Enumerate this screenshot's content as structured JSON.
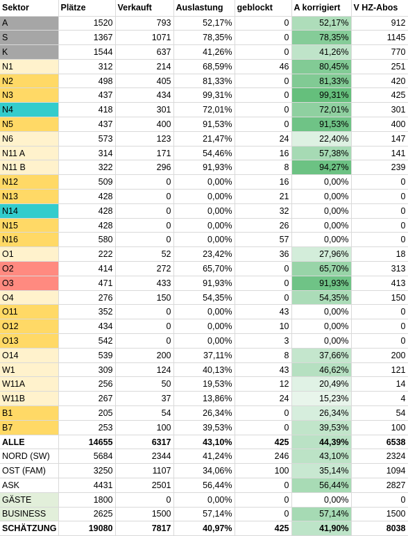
{
  "colors": {
    "gray": "#a6a6a6",
    "light_yellow": "#fff2cc",
    "yellow": "#ffd966",
    "teal": "#33cccc",
    "salmon": "#ff8a80",
    "light_green": "#e2efda"
  },
  "headers": [
    "Sektor",
    "Plätze",
    "Verkauft",
    "Auslastung",
    "geblockt",
    "A korrigiert",
    "V HZ-Abos"
  ],
  "rows": [
    {
      "cells": [
        "A",
        "1520",
        "793",
        "52,17%",
        "0",
        "52,17%",
        "912"
      ],
      "bg": "gray",
      "heat": 0.52,
      "bold": false
    },
    {
      "cells": [
        "S",
        "1367",
        "1071",
        "78,35%",
        "0",
        "78,35%",
        "1145"
      ],
      "bg": "gray",
      "heat": 0.78,
      "bold": false
    },
    {
      "cells": [
        "K",
        "1544",
        "637",
        "41,26%",
        "0",
        "41,26%",
        "770"
      ],
      "bg": "gray",
      "heat": 0.41,
      "bold": false
    },
    {
      "cells": [
        "N1",
        "312",
        "214",
        "68,59%",
        "46",
        "80,45%",
        "251"
      ],
      "bg": "light_yellow",
      "heat": 0.8,
      "bold": false
    },
    {
      "cells": [
        "N2",
        "498",
        "405",
        "81,33%",
        "0",
        "81,33%",
        "420"
      ],
      "bg": "yellow",
      "heat": 0.81,
      "bold": false
    },
    {
      "cells": [
        "N3",
        "437",
        "434",
        "99,31%",
        "0",
        "99,31%",
        "425"
      ],
      "bg": "yellow",
      "heat": 0.99,
      "bold": false
    },
    {
      "cells": [
        "N4",
        "418",
        "301",
        "72,01%",
        "0",
        "72,01%",
        "301"
      ],
      "bg": "teal",
      "heat": 0.72,
      "bold": false
    },
    {
      "cells": [
        "N5",
        "437",
        "400",
        "91,53%",
        "0",
        "91,53%",
        "400"
      ],
      "bg": "yellow",
      "heat": 0.92,
      "bold": false
    },
    {
      "cells": [
        "N6",
        "573",
        "123",
        "21,47%",
        "24",
        "22,40%",
        "147"
      ],
      "bg": "light_yellow",
      "heat": 0.22,
      "bold": false
    },
    {
      "cells": [
        "N11 A",
        "314",
        "171",
        "54,46%",
        "16",
        "57,38%",
        "141"
      ],
      "bg": "light_yellow",
      "heat": 0.57,
      "bold": false
    },
    {
      "cells": [
        "N11 B",
        "322",
        "296",
        "91,93%",
        "8",
        "94,27%",
        "239"
      ],
      "bg": "light_yellow",
      "heat": 0.94,
      "bold": false
    },
    {
      "cells": [
        "N12",
        "509",
        "0",
        "0,00%",
        "16",
        "0,00%",
        "0"
      ],
      "bg": "yellow",
      "heat": 0,
      "bold": false
    },
    {
      "cells": [
        "N13",
        "428",
        "0",
        "0,00%",
        "21",
        "0,00%",
        "0"
      ],
      "bg": "yellow",
      "heat": 0,
      "bold": false
    },
    {
      "cells": [
        "N14",
        "428",
        "0",
        "0,00%",
        "32",
        "0,00%",
        "0"
      ],
      "bg": "teal",
      "heat": 0,
      "bold": false
    },
    {
      "cells": [
        "N15",
        "428",
        "0",
        "0,00%",
        "26",
        "0,00%",
        "0"
      ],
      "bg": "yellow",
      "heat": 0,
      "bold": false
    },
    {
      "cells": [
        "N16",
        "580",
        "0",
        "0,00%",
        "57",
        "0,00%",
        "0"
      ],
      "bg": "yellow",
      "heat": 0,
      "bold": false
    },
    {
      "cells": [
        "O1",
        "222",
        "52",
        "23,42%",
        "36",
        "27,96%",
        "18"
      ],
      "bg": "light_yellow",
      "heat": 0.28,
      "bold": false
    },
    {
      "cells": [
        "O2",
        "414",
        "272",
        "65,70%",
        "0",
        "65,70%",
        "313"
      ],
      "bg": "salmon",
      "heat": 0.66,
      "bold": false
    },
    {
      "cells": [
        "O3",
        "471",
        "433",
        "91,93%",
        "0",
        "91,93%",
        "413"
      ],
      "bg": "salmon",
      "heat": 0.92,
      "bold": false
    },
    {
      "cells": [
        "O4",
        "276",
        "150",
        "54,35%",
        "0",
        "54,35%",
        "150"
      ],
      "bg": "light_yellow",
      "heat": 0.54,
      "bold": false
    },
    {
      "cells": [
        "O11",
        "352",
        "0",
        "0,00%",
        "43",
        "0,00%",
        "0"
      ],
      "bg": "yellow",
      "heat": 0,
      "bold": false
    },
    {
      "cells": [
        "O12",
        "434",
        "0",
        "0,00%",
        "10",
        "0,00%",
        "0"
      ],
      "bg": "yellow",
      "heat": 0,
      "bold": false
    },
    {
      "cells": [
        "O13",
        "542",
        "0",
        "0,00%",
        "3",
        "0,00%",
        "0"
      ],
      "bg": "yellow",
      "heat": 0,
      "bold": false
    },
    {
      "cells": [
        "O14",
        "539",
        "200",
        "37,11%",
        "8",
        "37,66%",
        "200"
      ],
      "bg": "light_yellow",
      "heat": 0.38,
      "bold": false
    },
    {
      "cells": [
        "W1",
        "309",
        "124",
        "40,13%",
        "43",
        "46,62%",
        "121"
      ],
      "bg": "light_yellow",
      "heat": 0.47,
      "bold": false
    },
    {
      "cells": [
        "W11A",
        "256",
        "50",
        "19,53%",
        "12",
        "20,49%",
        "14"
      ],
      "bg": "light_yellow",
      "heat": 0.2,
      "bold": false
    },
    {
      "cells": [
        "W11B",
        "267",
        "37",
        "13,86%",
        "24",
        "15,23%",
        "4"
      ],
      "bg": "light_yellow",
      "heat": 0.15,
      "bold": false
    },
    {
      "cells": [
        "B1",
        "205",
        "54",
        "26,34%",
        "0",
        "26,34%",
        "54"
      ],
      "bg": "yellow",
      "heat": 0.26,
      "bold": false
    },
    {
      "cells": [
        "B7",
        "253",
        "100",
        "39,53%",
        "0",
        "39,53%",
        "100"
      ],
      "bg": "yellow",
      "heat": 0.4,
      "bold": false
    },
    {
      "cells": [
        "ALLE",
        "14655",
        "6317",
        "43,10%",
        "425",
        "44,39%",
        "6538"
      ],
      "bg": "none",
      "heat": 0.44,
      "bold": true
    },
    {
      "cells": [
        "NORD (SW)",
        "5684",
        "2344",
        "41,24%",
        "246",
        "43,10%",
        "2324"
      ],
      "bg": "none",
      "heat": 0.43,
      "bold": false
    },
    {
      "cells": [
        "OST (FAM)",
        "3250",
        "1107",
        "34,06%",
        "100",
        "35,14%",
        "1094"
      ],
      "bg": "none",
      "heat": 0.35,
      "bold": false
    },
    {
      "cells": [
        "ASK",
        "4431",
        "2501",
        "56,44%",
        "0",
        "56,44%",
        "2827"
      ],
      "bg": "none",
      "heat": 0.56,
      "bold": false
    },
    {
      "cells": [
        "GÄSTE",
        "1800",
        "0",
        "0,00%",
        "0",
        "0,00%",
        "0"
      ],
      "bg": "light_green",
      "heat": 0,
      "bold": false
    },
    {
      "cells": [
        "BUSINESS",
        "2625",
        "1500",
        "57,14%",
        "0",
        "57,14%",
        "1500"
      ],
      "bg": "light_green",
      "heat": 0.57,
      "bold": false
    },
    {
      "cells": [
        "SCHÄTZUNG",
        "19080",
        "7817",
        "40,97%",
        "425",
        "41,90%",
        "8038"
      ],
      "bg": "none",
      "heat": 0.42,
      "bold": true
    }
  ]
}
